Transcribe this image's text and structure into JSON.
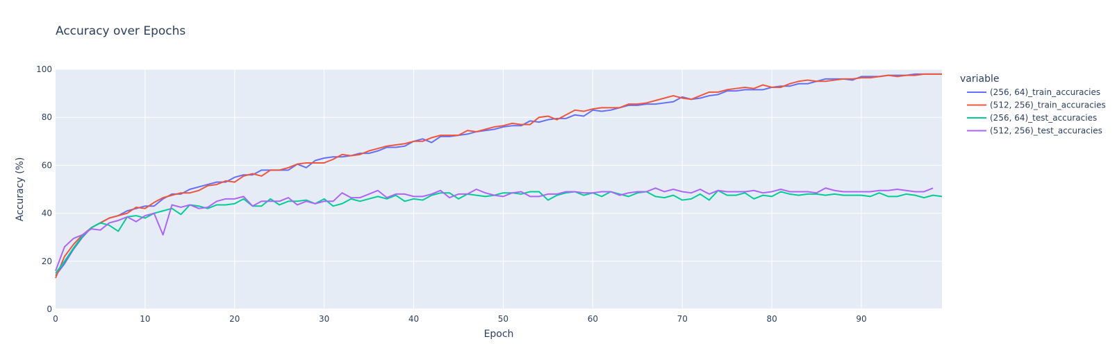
{
  "chart_data": {
    "type": "line",
    "title": "Accuracy over Epochs",
    "xlabel": "Epoch",
    "ylabel": "Accuracy (%)",
    "xlim": [
      0,
      99
    ],
    "ylim": [
      0,
      100
    ],
    "x_ticks": [
      0,
      10,
      20,
      30,
      40,
      50,
      60,
      70,
      80,
      90
    ],
    "y_ticks": [
      0,
      20,
      40,
      60,
      80,
      100
    ],
    "grid": true,
    "legend_title": "variable",
    "legend_position": "right",
    "plot_background": "#e5ecf6",
    "series": [
      {
        "name": "(256, 64)_train_accuracies",
        "color": "#636efa",
        "values": [
          14,
          19,
          25,
          30,
          34,
          36,
          38,
          39,
          41,
          42,
          43,
          43,
          46,
          48,
          48,
          50,
          51,
          52,
          53,
          53,
          55,
          56,
          56,
          58,
          58,
          58,
          58,
          60.5,
          59,
          62,
          63,
          63.5,
          63.5,
          64,
          65,
          65,
          66,
          67.5,
          67.5,
          68,
          70,
          71,
          69.5,
          72,
          72,
          72.5,
          73,
          74,
          74.5,
          75,
          76,
          76.5,
          76.5,
          78.5,
          78,
          79,
          79.5,
          79.5,
          81,
          80.5,
          83,
          82.5,
          83,
          84,
          85,
          85,
          85.5,
          85.5,
          86,
          86.5,
          88.5,
          87.5,
          88,
          89,
          89.5,
          91,
          91,
          91.5,
          91.5,
          91.5,
          92.5,
          93,
          93,
          94,
          94,
          95,
          96,
          96,
          96,
          95.5,
          97,
          97,
          97,
          97.5,
          97.5,
          97.5,
          98,
          98,
          98,
          98
        ]
      },
      {
        "name": "(512, 256)_train_accuracies",
        "color": "#ef553b",
        "values": [
          13,
          22,
          27,
          31,
          34,
          36,
          38,
          39,
          40,
          42.5,
          42,
          44.5,
          46.5,
          47.5,
          48.5,
          48.5,
          49.5,
          51.5,
          52,
          53.5,
          53,
          55.5,
          56.5,
          55.5,
          58,
          58,
          59,
          60.5,
          61,
          61,
          61,
          62.5,
          64.5,
          64,
          64.5,
          66,
          67,
          68,
          68.5,
          69,
          70,
          70,
          71.5,
          72.5,
          72.5,
          72.5,
          74.5,
          74,
          75,
          76,
          76.5,
          77.5,
          77,
          77,
          80,
          80.5,
          79,
          81,
          83,
          82.5,
          83.5,
          84,
          84,
          84,
          85.5,
          85.5,
          86,
          87,
          88,
          89,
          88,
          87.5,
          89,
          90.5,
          90.5,
          91.5,
          92,
          92.5,
          92,
          93.5,
          92.5,
          92.5,
          94,
          95,
          95.5,
          95,
          95,
          95.5,
          96,
          96,
          96.5,
          96.5,
          97,
          97.5,
          97,
          97.5,
          97.5,
          98,
          98,
          98
        ]
      },
      {
        "name": "(256, 64)_test_accuracies",
        "color": "#00cc96",
        "values": [
          15,
          20,
          25.5,
          30.5,
          34,
          36,
          35,
          32.5,
          38.5,
          39,
          38,
          40,
          41,
          42,
          39.5,
          43.5,
          43,
          42,
          43.5,
          43.5,
          44,
          46,
          43,
          43,
          46,
          43.5,
          45,
          45,
          45.5,
          44,
          46,
          43,
          44,
          46,
          45,
          46,
          47,
          46,
          47.5,
          45,
          46,
          45.5,
          47.5,
          48.5,
          48.5,
          46,
          48,
          47.5,
          47,
          47.5,
          48.5,
          48.5,
          48,
          49,
          49,
          45.5,
          47.5,
          48.5,
          49,
          47.5,
          48.5,
          47,
          49,
          48,
          47,
          48.5,
          49,
          47,
          46.5,
          47.5,
          45.5,
          46,
          48,
          45.5,
          49.5,
          47.5,
          47.5,
          48.5,
          46,
          47.5,
          47,
          49,
          48,
          47.5,
          48,
          48,
          47.5,
          48,
          47.5,
          47.5,
          47.5,
          47,
          48.5,
          47,
          47,
          48,
          47.5,
          46.5,
          47.5,
          47
        ]
      },
      {
        "name": "(512, 256)_test_accuracies",
        "color": "#ab63fa",
        "values": [
          16,
          26,
          29.5,
          31,
          33.5,
          33,
          36,
          37,
          38.5,
          36.5,
          39,
          40,
          31,
          43.5,
          42.5,
          43.5,
          42,
          42.5,
          45,
          46,
          46,
          47,
          43,
          45,
          45,
          45,
          46.5,
          43.5,
          45,
          44,
          45,
          45,
          48.5,
          46.5,
          46.5,
          48,
          49.5,
          46.5,
          48,
          48,
          47,
          47,
          48,
          49.5,
          46.5,
          48,
          48,
          50,
          48.5,
          47.5,
          47,
          48.5,
          49,
          47,
          47,
          48,
          48,
          49,
          49,
          48.5,
          48.5,
          49,
          49,
          47.5,
          48.5,
          49,
          49,
          50.5,
          49,
          50,
          49,
          48.5,
          50,
          48,
          49.5,
          49,
          49,
          49,
          49.5,
          48.5,
          49,
          50,
          49,
          49,
          49,
          48.5,
          50.5,
          49.5,
          49,
          49,
          49,
          49,
          49.5,
          49.5,
          50,
          49.5,
          49,
          49,
          50.5
        ]
      }
    ]
  }
}
